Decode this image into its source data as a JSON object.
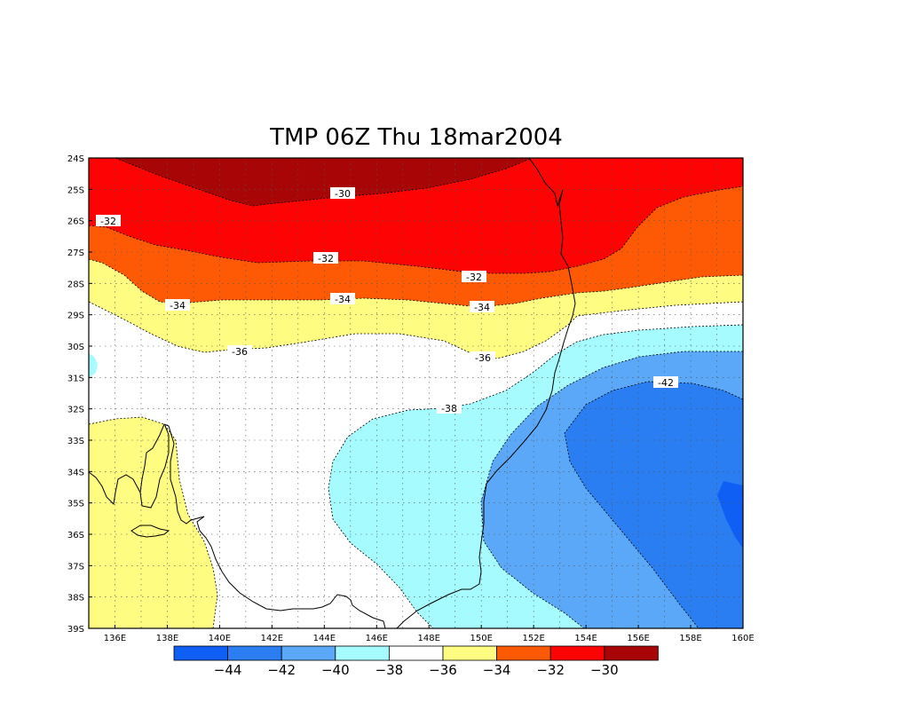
{
  "title": "TMP 06Z Thu 18mar2004",
  "colors": {
    "c44": "#0f5ff5",
    "c42": "#2a7ef2",
    "c40": "#5aa8f7",
    "c38": "#a5fbfd",
    "c36": "#ffffff",
    "c34": "#fefd82",
    "c32": "#fe5a05",
    "c30": "#fe0303",
    "c28": "#a80606"
  },
  "lat_labels": [
    "24S",
    "25S",
    "26S",
    "27S",
    "28S",
    "29S",
    "30S",
    "31S",
    "32S",
    "33S",
    "34S",
    "35S",
    "36S",
    "37S",
    "38S",
    "39S"
  ],
  "lon_labels": [
    "136E",
    "138E",
    "140E",
    "142E",
    "144E",
    "146E",
    "148E",
    "150E",
    "152E",
    "154E",
    "156E",
    "158E",
    "160E"
  ],
  "contour_labels": {
    "l30": "-30",
    "l32a": "-32",
    "l32b": "-32",
    "l32c": "-32",
    "l34a": "-34",
    "l34b": "-34",
    "l34c": "-34",
    "l36a": "-36",
    "l36b": "-36",
    "l38": "-38",
    "l42": "-42"
  },
  "colorbar": {
    "ticks": [
      "−44",
      "−42",
      "−40",
      "−38",
      "−36",
      "−34",
      "−32",
      "−30"
    ],
    "swatch_colors": [
      "#0f5ff5",
      "#2a7ef2",
      "#5aa8f7",
      "#a5fbfd",
      "#ffffff",
      "#fefd82",
      "#fe5a05",
      "#fe0303",
      "#a80606"
    ]
  }
}
